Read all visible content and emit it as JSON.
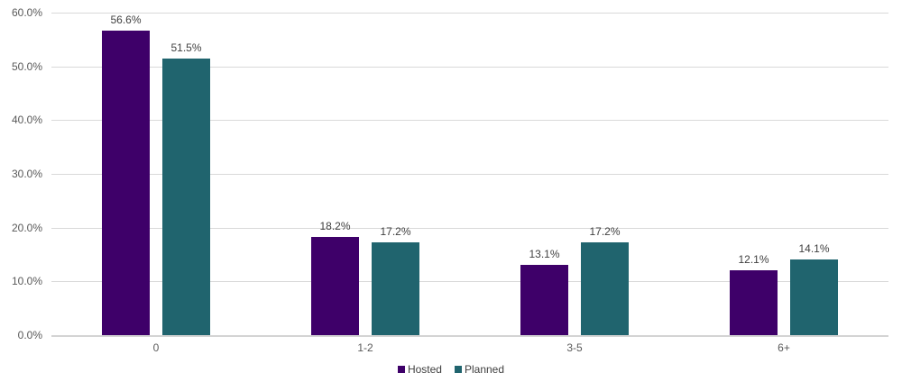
{
  "chart_data": {
    "type": "bar",
    "categories": [
      "0",
      "1-2",
      "3-5",
      "6+"
    ],
    "series": [
      {
        "name": "Hosted",
        "color": "#3E0069",
        "values": [
          56.6,
          18.2,
          13.1,
          12.1
        ]
      },
      {
        "name": "Planned",
        "color": "#20646E",
        "values": [
          51.5,
          17.2,
          17.2,
          14.1
        ]
      }
    ],
    "data_labels": [
      "56.6%",
      "51.5%",
      "18.2%",
      "17.2%",
      "13.1%",
      "17.2%",
      "12.1%",
      "14.1%"
    ],
    "ylabel": "",
    "xlabel": "",
    "title": "",
    "ylim": [
      0,
      60
    ],
    "ytick_step": 10,
    "ytick_labels": [
      "0.0%",
      "10.0%",
      "20.0%",
      "30.0%",
      "40.0%",
      "50.0%",
      "60.0%"
    ],
    "grid": true,
    "legend_position": "bottom-center",
    "colors": {
      "gridline": "#d9d9d9",
      "axis_line": "#d4d4d4",
      "tick_text": "#595959",
      "label_text": "#404040"
    }
  }
}
